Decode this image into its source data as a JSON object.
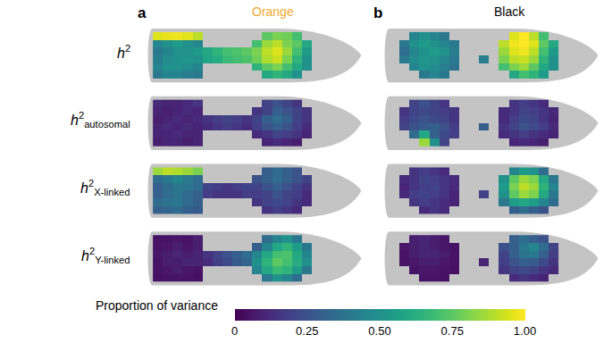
{
  "chart_data": {
    "type": "heatmap",
    "tick_labels": false,
    "colorbar": {
      "title": "Proportion of variance",
      "range": [
        0,
        1
      ],
      "ticks": [
        0,
        0.25,
        {
          "value": 0.5,
          "label": "0.50"
        },
        0.75,
        {
          "value": 1,
          "label": "1.00"
        }
      ]
    },
    "rows": [
      {
        "symbol": "h",
        "sup": "2"
      },
      {
        "symbol": "h",
        "sup": "2",
        "sub": "autosomal"
      },
      {
        "symbol": "h",
        "sup": "2",
        "sub": "X-linked"
      },
      {
        "symbol": "h",
        "sup": "2",
        "sub": "Y-linked"
      }
    ],
    "panels": [
      {
        "label": "a",
        "title": "Orange",
        "color": "#f0a830",
        "maps": [
          [
            [
              0.95,
              0.97,
              0.98,
              0.96,
              0.9,
              null,
              null,
              null,
              null,
              null,
              null,
              0.75,
              0.8,
              0.78,
              0.7,
              null,
              null
            ],
            [
              0.45,
              0.5,
              0.55,
              0.5,
              0.45,
              null,
              null,
              null,
              null,
              null,
              0.7,
              0.85,
              0.9,
              0.8,
              0.75,
              0.6,
              null
            ],
            [
              0.4,
              0.45,
              0.5,
              0.5,
              0.55,
              0.6,
              0.65,
              0.7,
              0.72,
              0.75,
              0.8,
              0.9,
              0.95,
              0.85,
              0.7,
              0.55,
              null
            ],
            [
              0.42,
              0.48,
              0.5,
              0.52,
              0.5,
              0.58,
              0.62,
              0.68,
              0.7,
              0.72,
              0.78,
              0.88,
              0.92,
              0.8,
              0.65,
              0.5,
              null
            ],
            [
              0.45,
              0.5,
              0.5,
              0.48,
              0.45,
              null,
              null,
              null,
              null,
              null,
              0.65,
              0.75,
              0.8,
              0.7,
              0.6,
              0.5,
              null
            ],
            [
              0.4,
              0.45,
              0.45,
              0.42,
              0.4,
              null,
              null,
              null,
              null,
              null,
              null,
              0.6,
              0.65,
              0.6,
              0.5,
              null,
              null
            ]
          ],
          [
            [
              0.12,
              0.1,
              0.1,
              0.12,
              0.15,
              null,
              null,
              null,
              null,
              null,
              null,
              0.2,
              0.25,
              0.2,
              0.15,
              null,
              null
            ],
            [
              0.1,
              0.08,
              0.1,
              0.12,
              0.1,
              null,
              null,
              null,
              null,
              null,
              0.15,
              0.2,
              0.3,
              0.25,
              0.2,
              0.15,
              null
            ],
            [
              0.08,
              0.1,
              0.12,
              0.1,
              0.12,
              0.15,
              0.18,
              0.2,
              0.18,
              0.15,
              0.2,
              0.3,
              0.35,
              0.3,
              0.2,
              0.15,
              null
            ],
            [
              0.1,
              0.12,
              0.1,
              0.12,
              0.1,
              0.12,
              0.15,
              0.18,
              0.15,
              0.12,
              0.18,
              0.25,
              0.3,
              0.25,
              0.18,
              0.12,
              null
            ],
            [
              0.1,
              0.1,
              0.12,
              0.1,
              0.1,
              null,
              null,
              null,
              null,
              null,
              0.12,
              0.15,
              0.2,
              0.18,
              0.15,
              0.1,
              null
            ],
            [
              0.08,
              0.1,
              0.1,
              0.08,
              0.1,
              null,
              null,
              null,
              null,
              null,
              null,
              0.1,
              0.12,
              0.1,
              0.08,
              null,
              null
            ]
          ],
          [
            [
              0.85,
              0.9,
              0.88,
              0.85,
              0.8,
              null,
              null,
              null,
              null,
              null,
              null,
              0.3,
              0.35,
              0.3,
              0.25,
              null,
              null
            ],
            [
              0.35,
              0.4,
              0.45,
              0.4,
              0.35,
              null,
              null,
              null,
              null,
              null,
              0.25,
              0.3,
              0.35,
              0.3,
              0.25,
              0.2,
              null
            ],
            [
              0.3,
              0.35,
              0.4,
              0.38,
              0.35,
              0.2,
              0.18,
              0.15,
              0.18,
              0.2,
              0.2,
              0.25,
              0.3,
              0.25,
              0.2,
              0.15,
              null
            ],
            [
              0.3,
              0.35,
              0.38,
              0.35,
              0.3,
              0.18,
              0.15,
              0.15,
              0.15,
              0.18,
              0.18,
              0.2,
              0.25,
              0.2,
              0.18,
              0.12,
              null
            ],
            [
              0.35,
              0.38,
              0.4,
              0.35,
              0.3,
              null,
              null,
              null,
              null,
              null,
              0.15,
              0.2,
              0.22,
              0.2,
              0.15,
              0.12,
              null
            ],
            [
              0.3,
              0.32,
              0.35,
              0.3,
              0.28,
              null,
              null,
              null,
              null,
              null,
              null,
              0.15,
              0.18,
              0.15,
              0.12,
              null,
              null
            ]
          ],
          [
            [
              0.05,
              0.05,
              0.06,
              0.05,
              0.08,
              null,
              null,
              null,
              null,
              null,
              null,
              0.35,
              0.45,
              0.5,
              0.4,
              null,
              null
            ],
            [
              0.05,
              0.06,
              0.08,
              0.06,
              0.08,
              null,
              null,
              null,
              null,
              null,
              0.3,
              0.45,
              0.6,
              0.65,
              0.55,
              0.4,
              null
            ],
            [
              0.06,
              0.08,
              0.1,
              0.08,
              0.1,
              0.15,
              0.2,
              0.25,
              0.3,
              0.35,
              0.45,
              0.6,
              0.7,
              0.72,
              0.6,
              0.45,
              null
            ],
            [
              0.05,
              0.08,
              0.08,
              0.1,
              0.1,
              0.12,
              0.18,
              0.22,
              0.28,
              0.32,
              0.5,
              0.65,
              0.75,
              0.7,
              0.62,
              0.5,
              null
            ],
            [
              0.05,
              0.06,
              0.08,
              0.06,
              0.05,
              null,
              null,
              null,
              null,
              null,
              0.45,
              0.6,
              0.68,
              0.65,
              0.55,
              0.4,
              null
            ],
            [
              0.04,
              0.05,
              0.05,
              0.05,
              0.04,
              null,
              null,
              null,
              null,
              null,
              null,
              0.4,
              0.5,
              0.45,
              0.35,
              null,
              null
            ]
          ]
        ]
      },
      {
        "label": "b",
        "title": "Black",
        "color": "#000000",
        "maps": [
          [
            [
              null,
              null,
              0.45,
              0.5,
              0.45,
              0.4,
              null,
              null,
              null,
              null,
              null,
              null,
              0.95,
              1.0,
              0.9,
              0.7,
              null
            ],
            [
              null,
              0.4,
              0.5,
              0.55,
              0.5,
              0.45,
              0.4,
              null,
              null,
              null,
              null,
              0.9,
              0.98,
              1.0,
              0.95,
              0.75,
              0.6
            ],
            [
              null,
              0.35,
              0.45,
              0.5,
              0.55,
              0.5,
              0.42,
              null,
              null,
              null,
              null,
              0.85,
              0.95,
              0.98,
              0.9,
              0.7,
              0.55
            ],
            [
              null,
              0.4,
              0.48,
              0.52,
              0.5,
              0.45,
              0.4,
              null,
              null,
              0.42,
              null,
              0.8,
              0.9,
              0.92,
              0.85,
              0.65,
              0.5
            ],
            [
              null,
              null,
              0.45,
              0.5,
              0.48,
              0.42,
              0.38,
              null,
              null,
              null,
              null,
              0.7,
              0.8,
              0.85,
              0.75,
              0.6,
              0.5
            ],
            [
              null,
              null,
              null,
              0.4,
              0.45,
              0.4,
              null,
              null,
              null,
              null,
              null,
              null,
              0.6,
              0.7,
              0.65,
              0.55,
              null
            ]
          ],
          [
            [
              null,
              null,
              0.2,
              0.25,
              0.2,
              0.15,
              null,
              null,
              null,
              null,
              null,
              null,
              0.15,
              0.18,
              0.15,
              0.12,
              null
            ],
            [
              null,
              0.15,
              0.2,
              0.22,
              0.2,
              0.18,
              0.15,
              null,
              null,
              null,
              null,
              0.12,
              0.15,
              0.2,
              0.18,
              0.15,
              0.12
            ],
            [
              null,
              0.18,
              0.22,
              0.25,
              0.22,
              0.2,
              0.15,
              null,
              null,
              null,
              null,
              0.12,
              0.18,
              0.22,
              0.2,
              0.15,
              0.1
            ],
            [
              null,
              0.2,
              0.25,
              0.28,
              0.3,
              0.25,
              0.18,
              null,
              null,
              0.3,
              null,
              0.15,
              0.2,
              0.25,
              0.22,
              0.18,
              0.12
            ],
            [
              null,
              null,
              0.35,
              0.6,
              0.3,
              0.22,
              0.18,
              null,
              null,
              null,
              null,
              0.12,
              0.15,
              0.18,
              0.15,
              0.12,
              0.1
            ],
            [
              null,
              null,
              null,
              0.85,
              0.5,
              0.2,
              null,
              null,
              null,
              null,
              null,
              null,
              0.1,
              0.12,
              0.1,
              0.08,
              null
            ]
          ],
          [
            [
              null,
              null,
              0.15,
              0.18,
              0.15,
              0.12,
              null,
              null,
              null,
              null,
              null,
              null,
              0.45,
              0.55,
              0.5,
              0.35,
              null
            ],
            [
              null,
              0.12,
              0.15,
              0.2,
              0.18,
              0.15,
              0.12,
              null,
              null,
              null,
              null,
              0.5,
              0.75,
              0.85,
              0.8,
              0.6,
              0.4
            ],
            [
              null,
              0.1,
              0.15,
              0.18,
              0.2,
              0.15,
              0.12,
              null,
              null,
              null,
              null,
              0.55,
              0.8,
              0.9,
              0.85,
              0.65,
              0.45
            ],
            [
              null,
              0.12,
              0.18,
              0.2,
              0.18,
              0.15,
              0.1,
              null,
              null,
              0.2,
              null,
              0.5,
              0.75,
              0.85,
              0.8,
              0.6,
              0.4
            ],
            [
              null,
              null,
              0.15,
              0.18,
              0.15,
              0.12,
              0.1,
              null,
              null,
              null,
              null,
              0.4,
              0.55,
              0.6,
              0.55,
              0.45,
              0.35
            ],
            [
              null,
              null,
              null,
              0.12,
              0.15,
              0.12,
              null,
              null,
              null,
              null,
              null,
              null,
              0.3,
              0.35,
              0.3,
              0.25,
              null
            ]
          ],
          [
            [
              null,
              null,
              0.08,
              0.1,
              0.08,
              0.06,
              null,
              null,
              null,
              null,
              null,
              null,
              0.3,
              0.35,
              0.3,
              0.25,
              null
            ],
            [
              null,
              0.06,
              0.08,
              0.1,
              0.08,
              0.06,
              0.05,
              null,
              null,
              null,
              null,
              0.25,
              0.3,
              0.4,
              0.45,
              0.35,
              0.2
            ],
            [
              null,
              0.05,
              0.08,
              0.1,
              0.1,
              0.08,
              0.05,
              null,
              null,
              null,
              null,
              0.2,
              0.3,
              0.38,
              0.4,
              0.3,
              0.18
            ],
            [
              null,
              0.05,
              0.06,
              0.08,
              0.08,
              0.06,
              0.05,
              null,
              null,
              0.1,
              null,
              0.18,
              0.25,
              0.3,
              0.28,
              0.22,
              0.15
            ],
            [
              null,
              null,
              0.05,
              0.06,
              0.06,
              0.05,
              0.04,
              null,
              null,
              null,
              null,
              0.15,
              0.2,
              0.22,
              0.2,
              0.15,
              0.12
            ],
            [
              null,
              null,
              null,
              0.05,
              0.05,
              0.04,
              null,
              null,
              null,
              null,
              null,
              null,
              0.12,
              0.15,
              0.12,
              0.1,
              null
            ]
          ]
        ]
      }
    ]
  }
}
